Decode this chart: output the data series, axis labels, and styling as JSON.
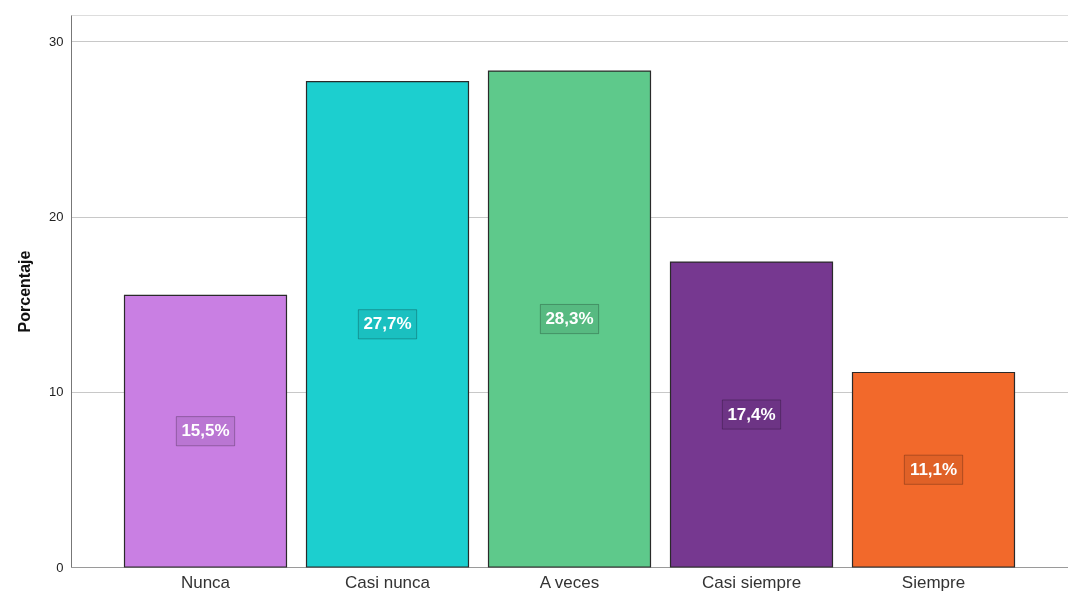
{
  "chart_data": {
    "type": "bar",
    "ylabel": "Porcentaje",
    "categories": [
      "Nunca",
      "Casi nunca",
      "A veces",
      "Casi siempre",
      "Siempre"
    ],
    "values": [
      15.5,
      27.7,
      28.3,
      17.4,
      11.1
    ],
    "colors": [
      "#c97fe3",
      "#1ccfcf",
      "#5ec98b",
      "#763890",
      "#f2692b"
    ],
    "value_labels": [
      "15,5%",
      "27,7%",
      "28,3%",
      "17,4%",
      "11,1%"
    ],
    "ylim": [
      0,
      31.5
    ],
    "yticks": [
      0,
      10,
      20,
      30
    ],
    "grid": "y"
  }
}
